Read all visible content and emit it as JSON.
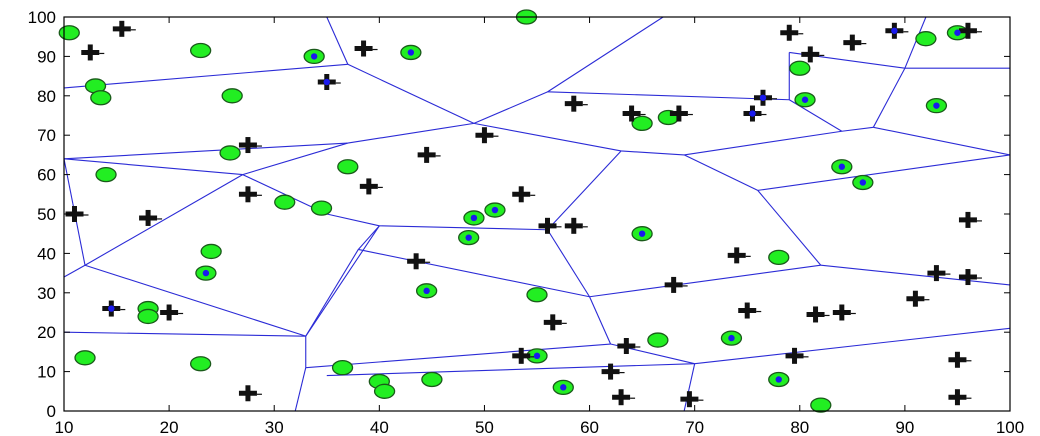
{
  "chart_data": {
    "type": "scatter",
    "title": "",
    "xlabel": "",
    "ylabel": "",
    "xlim": [
      10,
      100
    ],
    "ylim": [
      0,
      100
    ],
    "grid": false,
    "x_ticks": [
      "10",
      "20",
      "30",
      "40",
      "50",
      "60",
      "70",
      "80",
      "90",
      "100"
    ],
    "y_ticks": [
      "0",
      "10",
      "20",
      "30",
      "40",
      "50",
      "60",
      "70",
      "80",
      "90",
      "100"
    ],
    "colors": {
      "voronoi_edges": "#2b2bd6",
      "circle_fill": "#22ee22",
      "circle_stroke": "#1a5a1a",
      "cross": "#111111",
      "blue_marker": "#1a1aee",
      "axes": "#000000"
    },
    "voronoi_edges": [
      [
        [
          10,
          82
        ],
        [
          37,
          88
        ]
      ],
      [
        [
          37,
          88
        ],
        [
          35,
          100
        ]
      ],
      [
        [
          37,
          88
        ],
        [
          49,
          73
        ]
      ],
      [
        [
          49,
          73
        ],
        [
          56,
          81
        ]
      ],
      [
        [
          56,
          81
        ],
        [
          67,
          100
        ]
      ],
      [
        [
          56,
          81
        ],
        [
          79,
          79
        ]
      ],
      [
        [
          79,
          79
        ],
        [
          84,
          71
        ]
      ],
      [
        [
          84,
          71
        ],
        [
          87,
          72
        ]
      ],
      [
        [
          87,
          72
        ],
        [
          90,
          87
        ]
      ],
      [
        [
          90,
          87
        ],
        [
          92,
          100
        ]
      ],
      [
        [
          90,
          87
        ],
        [
          100,
          87
        ]
      ],
      [
        [
          79,
          79
        ],
        [
          79,
          91
        ]
      ],
      [
        [
          79,
          91
        ],
        [
          90,
          87
        ]
      ],
      [
        [
          87,
          72
        ],
        [
          100,
          65
        ]
      ],
      [
        [
          49,
          73
        ],
        [
          37,
          68
        ]
      ],
      [
        [
          37,
          68
        ],
        [
          10,
          64
        ]
      ],
      [
        [
          37,
          68
        ],
        [
          27,
          60
        ]
      ],
      [
        [
          27,
          60
        ],
        [
          10,
          64
        ]
      ],
      [
        [
          27,
          60
        ],
        [
          35,
          50
        ]
      ],
      [
        [
          35,
          50
        ],
        [
          40,
          47
        ]
      ],
      [
        [
          40,
          47
        ],
        [
          56,
          46
        ]
      ],
      [
        [
          56,
          46
        ],
        [
          63,
          66
        ]
      ],
      [
        [
          63,
          66
        ],
        [
          49,
          73
        ]
      ],
      [
        [
          63,
          66
        ],
        [
          69,
          65
        ]
      ],
      [
        [
          69,
          65
        ],
        [
          84,
          71
        ]
      ],
      [
        [
          69,
          65
        ],
        [
          76,
          56
        ]
      ],
      [
        [
          76,
          56
        ],
        [
          100,
          65
        ]
      ],
      [
        [
          76,
          56
        ],
        [
          82,
          37
        ]
      ],
      [
        [
          82,
          37
        ],
        [
          100,
          32
        ]
      ],
      [
        [
          82,
          37
        ],
        [
          60,
          29
        ]
      ],
      [
        [
          60,
          29
        ],
        [
          56,
          46
        ]
      ],
      [
        [
          60,
          29
        ],
        [
          38,
          41
        ]
      ],
      [
        [
          38,
          41
        ],
        [
          40,
          47
        ]
      ],
      [
        [
          38,
          41
        ],
        [
          33,
          19
        ]
      ],
      [
        [
          33,
          19
        ],
        [
          40,
          47
        ]
      ],
      [
        [
          33,
          19
        ],
        [
          10,
          20
        ]
      ],
      [
        [
          33,
          19
        ],
        [
          33,
          11
        ]
      ],
      [
        [
          33,
          11
        ],
        [
          32,
          0
        ]
      ],
      [
        [
          33,
          11
        ],
        [
          62,
          17
        ]
      ],
      [
        [
          62,
          17
        ],
        [
          60,
          29
        ]
      ],
      [
        [
          62,
          17
        ],
        [
          70,
          12
        ]
      ],
      [
        [
          70,
          12
        ],
        [
          100,
          21
        ]
      ],
      [
        [
          70,
          12
        ],
        [
          69,
          0
        ]
      ],
      [
        [
          10,
          34
        ],
        [
          12,
          37
        ]
      ],
      [
        [
          12,
          37
        ],
        [
          27,
          60
        ]
      ],
      [
        [
          12,
          37
        ],
        [
          33,
          19
        ]
      ],
      [
        [
          10,
          64
        ],
        [
          12,
          37
        ]
      ],
      [
        [
          35,
          9
        ],
        [
          70,
          12
        ]
      ]
    ],
    "series": [
      {
        "marker": "circle",
        "points": [
          [
            10.5,
            96
          ],
          [
            13,
            82.5
          ],
          [
            23,
            91.5
          ],
          [
            33.8,
            90
          ],
          [
            43,
            91
          ],
          [
            54,
            100
          ],
          [
            13.5,
            79.5
          ],
          [
            26,
            80
          ],
          [
            92,
            94.5
          ],
          [
            95,
            96
          ],
          [
            80,
            87
          ],
          [
            80.5,
            79
          ],
          [
            93,
            77.5
          ],
          [
            65,
            73
          ],
          [
            67.5,
            74.5
          ],
          [
            25.8,
            65.5
          ],
          [
            37,
            62
          ],
          [
            84,
            62
          ],
          [
            86,
            58
          ],
          [
            14,
            60
          ],
          [
            31,
            53
          ],
          [
            34.5,
            51.5
          ],
          [
            49,
            49
          ],
          [
            51,
            51
          ],
          [
            48.5,
            44
          ],
          [
            65,
            45
          ],
          [
            24,
            40.5
          ],
          [
            23.5,
            35
          ],
          [
            78,
            39
          ],
          [
            44.5,
            30.5
          ],
          [
            55,
            29.5
          ],
          [
            18,
            26
          ],
          [
            18,
            24
          ],
          [
            66.5,
            18
          ],
          [
            73.5,
            18.5
          ],
          [
            12,
            13.5
          ],
          [
            23,
            12
          ],
          [
            55,
            14
          ],
          [
            36.5,
            11
          ],
          [
            40,
            7.5
          ],
          [
            45,
            8
          ],
          [
            40.5,
            5
          ],
          [
            57.5,
            6
          ],
          [
            78,
            8
          ],
          [
            82,
            1.5
          ]
        ]
      },
      {
        "marker": "cross",
        "points": [
          [
            12.5,
            91
          ],
          [
            15.5,
            97
          ],
          [
            38.5,
            92
          ],
          [
            35,
            83.5
          ],
          [
            58.5,
            78
          ],
          [
            64,
            75.5
          ],
          [
            68.5,
            75.5
          ],
          [
            76.5,
            79.5
          ],
          [
            75.5,
            75.5
          ],
          [
            79,
            96
          ],
          [
            81,
            90.5
          ],
          [
            85,
            93.5
          ],
          [
            89,
            96.5
          ],
          [
            96,
            96.5
          ],
          [
            27.5,
            67.5
          ],
          [
            44.5,
            65
          ],
          [
            50,
            70
          ],
          [
            39,
            57
          ],
          [
            27.5,
            55
          ],
          [
            11,
            50
          ],
          [
            18,
            49
          ],
          [
            53.5,
            55
          ],
          [
            96,
            48.5
          ],
          [
            56,
            47
          ],
          [
            58.5,
            47
          ],
          [
            43.5,
            38
          ],
          [
            74,
            39.5
          ],
          [
            68,
            32
          ],
          [
            93,
            35
          ],
          [
            96,
            34
          ],
          [
            91,
            28.5
          ],
          [
            14.5,
            26
          ],
          [
            20,
            25
          ],
          [
            56.5,
            22.5
          ],
          [
            75,
            25.5
          ],
          [
            81.5,
            24.5
          ],
          [
            84,
            25
          ],
          [
            63.5,
            16.5
          ],
          [
            79.5,
            14
          ],
          [
            53.5,
            14
          ],
          [
            95,
            13
          ],
          [
            62,
            10
          ],
          [
            27.5,
            4.5
          ],
          [
            63,
            3.5
          ],
          [
            69.5,
            3
          ],
          [
            95,
            3.5
          ]
        ]
      },
      {
        "marker": "blue-dot",
        "points": [
          [
            33.8,
            90
          ],
          [
            43,
            91
          ],
          [
            35,
            83.5
          ],
          [
            76.5,
            79.5
          ],
          [
            75.5,
            75.5
          ],
          [
            80.5,
            79
          ],
          [
            93,
            77.5
          ],
          [
            95,
            96
          ],
          [
            89,
            96.5
          ],
          [
            84,
            62
          ],
          [
            86,
            58
          ],
          [
            49,
            49
          ],
          [
            51,
            51
          ],
          [
            48.5,
            44
          ],
          [
            65,
            45
          ],
          [
            23.5,
            35
          ],
          [
            44.5,
            30.5
          ],
          [
            14.5,
            26
          ],
          [
            73.5,
            18.5
          ],
          [
            55,
            14
          ],
          [
            57.5,
            6
          ],
          [
            78,
            8
          ]
        ]
      }
    ]
  }
}
